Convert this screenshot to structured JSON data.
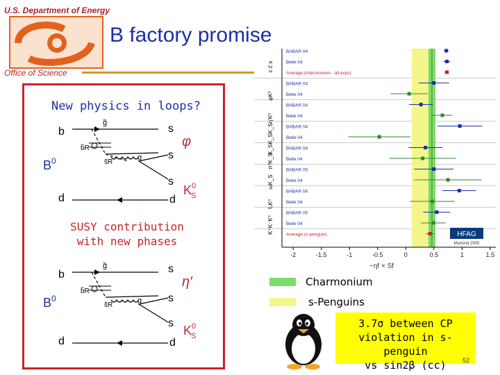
{
  "header": {
    "department": "U.S. Department of Energy",
    "office": "Office of Science"
  },
  "title": "B factory promise",
  "diagram": {
    "heading": "New physics in loops?",
    "susy_caption_line1": "SUSY contribution",
    "susy_caption_line2": "with new phases",
    "top": {
      "b_label": "b",
      "b0_label": "B",
      "b0_sup": "0",
      "d_left": "d",
      "d_right": "d",
      "s1": "s",
      "s2": "s",
      "s3": "s",
      "phi": "φ",
      "ks": "K",
      "ks_sup": "0",
      "ks_sub": "S",
      "gluino": "g̃",
      "bR": "b̃R",
      "sR": "s̃R",
      "g": "g"
    },
    "bottom": {
      "b_label": "b",
      "b0_label": "B",
      "b0_sup": "0",
      "d_left": "d",
      "d_right": "d",
      "s1": "s",
      "s2": "s",
      "s3": "s",
      "etap": "η'",
      "ks": "K",
      "ks_sup": "0",
      "ks_sub": "S",
      "gluino": "g̃",
      "bR": "b̃R",
      "sR": "s̃R",
      "g": "g"
    }
  },
  "plot": {
    "modes": [
      "c c̄ s",
      "φK⁰",
      "η'K⁰",
      "K_SK_SK_S",
      "π⁰K_S",
      "ωK_S",
      "f₀K⁰",
      "K⁺K⁻K⁰"
    ],
    "row_labels": [
      "BABAR 04",
      "Belle 04",
      "Average (charmonium - all exps)",
      "BABAR 04",
      "Belle 04",
      "BABAR 04",
      "Belle 04",
      "BABAR 04",
      "Belle 04",
      "BABAR 04",
      "Belle 04",
      "BABAR 05",
      "Belle 04",
      "BABAR 04",
      "Belle 04",
      "BABAR 05",
      "Belle 04",
      "Average (s-penguin)"
    ],
    "x_ticks": [
      "-2",
      "-1.5",
      "-1",
      "-0.5",
      "0",
      "0.5",
      "1",
      "1.5"
    ],
    "x_axis_label": "−ηf × Sf",
    "badge": "HFAG",
    "badge_sub": "Moriond 2005"
  },
  "legend": {
    "items": [
      {
        "label": "Charmonium",
        "color": "#7ddc6a"
      },
      {
        "label": "s-Penguins",
        "color": "#f4f58a"
      }
    ]
  },
  "callout": {
    "line1": "3.7σ between CP",
    "line2": "violation in s-penguin",
    "line3": "vs sin2β (cc)"
  },
  "page_number": "52",
  "colors": {
    "title": "#1a2fa8",
    "accent_red": "#c6242b",
    "doe_orange": "#e2611f",
    "callout_bg": "#ffff00"
  }
}
